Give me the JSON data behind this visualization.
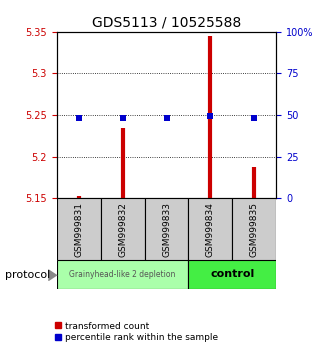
{
  "title": "GDS5113 / 10525588",
  "samples": [
    "GSM999831",
    "GSM999832",
    "GSM999833",
    "GSM999834",
    "GSM999835"
  ],
  "red_values": [
    5.153,
    5.235,
    5.148,
    5.345,
    5.188
  ],
  "blue_values": [
    5.246,
    5.246,
    5.246,
    5.249,
    5.246
  ],
  "ylim": [
    5.15,
    5.35
  ],
  "yticks_left": [
    5.15,
    5.2,
    5.25,
    5.3,
    5.35
  ],
  "yticks_right": [
    0,
    25,
    50,
    75,
    100
  ],
  "ytick_labels_left": [
    "5.15",
    "5.2",
    "5.25",
    "5.3",
    "5.35"
  ],
  "ytick_labels_right": [
    "0",
    "25",
    "50",
    "75",
    "100%"
  ],
  "red_color": "#cc0000",
  "blue_color": "#0000cc",
  "group1_label": "Grainyhead-like 2 depletion",
  "group2_label": "control",
  "group1_color": "#aaffaa",
  "group2_color": "#44ee44",
  "protocol_label": "protocol",
  "sample_bg_color": "#cccccc",
  "legend_red_label": "transformed count",
  "legend_blue_label": "percentile rank within the sample",
  "gridlines": [
    5.2,
    5.25,
    5.3
  ]
}
